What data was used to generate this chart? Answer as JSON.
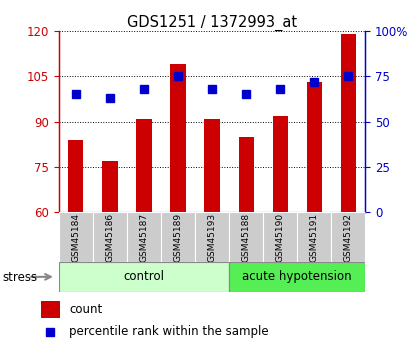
{
  "title": "GDS1251 / 1372993_at",
  "samples": [
    "GSM45184",
    "GSM45186",
    "GSM45187",
    "GSM45189",
    "GSM45193",
    "GSM45188",
    "GSM45190",
    "GSM45191",
    "GSM45192"
  ],
  "count_values": [
    84,
    77,
    91,
    109,
    91,
    85,
    92,
    103,
    119
  ],
  "percentile_values": [
    65,
    63,
    68,
    75,
    68,
    65,
    68,
    72,
    75
  ],
  "bar_color": "#cc0000",
  "marker_color": "#0000cc",
  "ylim_left": [
    60,
    120
  ],
  "ylim_right": [
    0,
    100
  ],
  "yticks_left": [
    60,
    75,
    90,
    105,
    120
  ],
  "yticks_right": [
    0,
    25,
    50,
    75,
    100
  ],
  "ytick_labels_right": [
    "0",
    "25",
    "50",
    "75",
    "100%"
  ],
  "control_samples": 5,
  "group_labels": [
    "control",
    "acute hypotension"
  ],
  "ctrl_color": "#ccffcc",
  "acute_color": "#55ee55",
  "label_box_color": "#cccccc",
  "stress_label": "stress",
  "legend_count": "count",
  "legend_percentile": "percentile rank within the sample",
  "left_axis_color": "#cc0000",
  "right_axis_color": "#0000cc"
}
